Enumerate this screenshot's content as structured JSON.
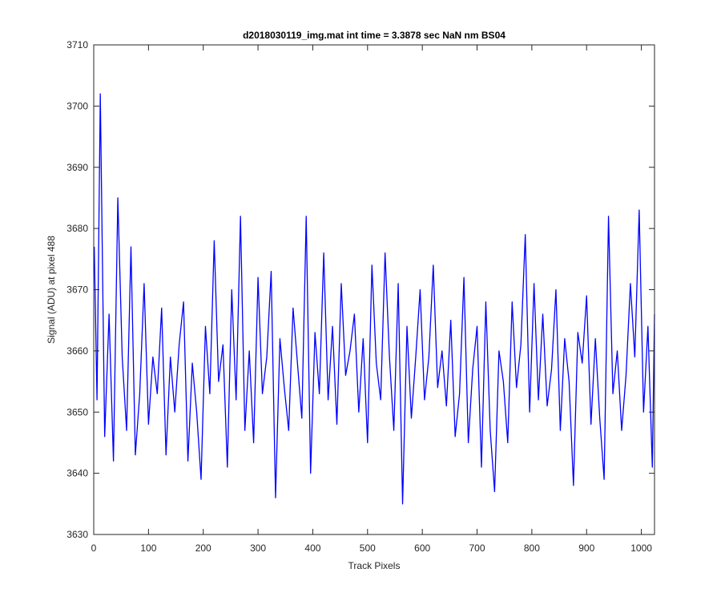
{
  "chart_data": {
    "type": "line",
    "title": "d2018030119_img.mat int time = 3.3878 sec  NaN nm BS04",
    "xlabel": "Track Pixels",
    "ylabel": "Signal (ADU) at pixel 488",
    "xlim": [
      0,
      1024
    ],
    "ylim": [
      3630,
      3710
    ],
    "xticks": [
      0,
      100,
      200,
      300,
      400,
      500,
      600,
      700,
      800,
      900,
      1000
    ],
    "yticks": [
      3630,
      3640,
      3650,
      3660,
      3670,
      3680,
      3690,
      3700,
      3710
    ],
    "grid": false,
    "line_color": "#0000ff",
    "series": [
      {
        "x": [
          1,
          6,
          12,
          20,
          28,
          36,
          44,
          52,
          60,
          68,
          76,
          84,
          92,
          100,
          108,
          116,
          124,
          132,
          140,
          148,
          156,
          164,
          172,
          180,
          188,
          196,
          204,
          212,
          220,
          228,
          236,
          244,
          252,
          260,
          268,
          276,
          284,
          292,
          300,
          308,
          316,
          324,
          332,
          340,
          348,
          356,
          364,
          372,
          380,
          388,
          396,
          404,
          412,
          420,
          428,
          436,
          444,
          452,
          460,
          468,
          476,
          484,
          492,
          500,
          508,
          516,
          524,
          532,
          540,
          548,
          556,
          564,
          572,
          580,
          588,
          596,
          604,
          612,
          620,
          628,
          636,
          644,
          652,
          660,
          668,
          676,
          684,
          692,
          700,
          708,
          716,
          724,
          732,
          740,
          748,
          756,
          764,
          772,
          780,
          788,
          796,
          804,
          812,
          820,
          828,
          836,
          844,
          852,
          860,
          868,
          876,
          884,
          892,
          900,
          908,
          916,
          924,
          932,
          940,
          948,
          956,
          964,
          972,
          980,
          988,
          996,
          1004,
          1012,
          1020,
          1024
        ],
        "y": [
          3677,
          3652,
          3702,
          3646,
          3666,
          3642,
          3685,
          3659,
          3647,
          3677,
          3643,
          3653,
          3671,
          3648,
          3659,
          3653,
          3667,
          3643,
          3659,
          3650,
          3661,
          3668,
          3642,
          3658,
          3650,
          3639,
          3664,
          3653,
          3678,
          3655,
          3661,
          3641,
          3670,
          3652,
          3682,
          3647,
          3660,
          3645,
          3672,
          3653,
          3659,
          3673,
          3636,
          3662,
          3654,
          3647,
          3667,
          3658,
          3649,
          3682,
          3640,
          3663,
          3653,
          3676,
          3652,
          3664,
          3648,
          3671,
          3656,
          3660,
          3666,
          3650,
          3662,
          3645,
          3674,
          3658,
          3652,
          3676,
          3659,
          3647,
          3671,
          3635,
          3664,
          3649,
          3659,
          3670,
          3652,
          3659,
          3674,
          3654,
          3660,
          3651,
          3665,
          3646,
          3653,
          3672,
          3645,
          3657,
          3664,
          3641,
          3668,
          3647,
          3637,
          3660,
          3655,
          3645,
          3668,
          3654,
          3661,
          3679,
          3650,
          3671,
          3652,
          3666,
          3651,
          3657,
          3670,
          3647,
          3662,
          3655,
          3638,
          3663,
          3658,
          3669,
          3648,
          3662,
          3649,
          3639,
          3682,
          3653,
          3660,
          3647,
          3656,
          3671,
          3659,
          3683,
          3650,
          3664,
          3641,
          3666
        ]
      }
    ]
  }
}
